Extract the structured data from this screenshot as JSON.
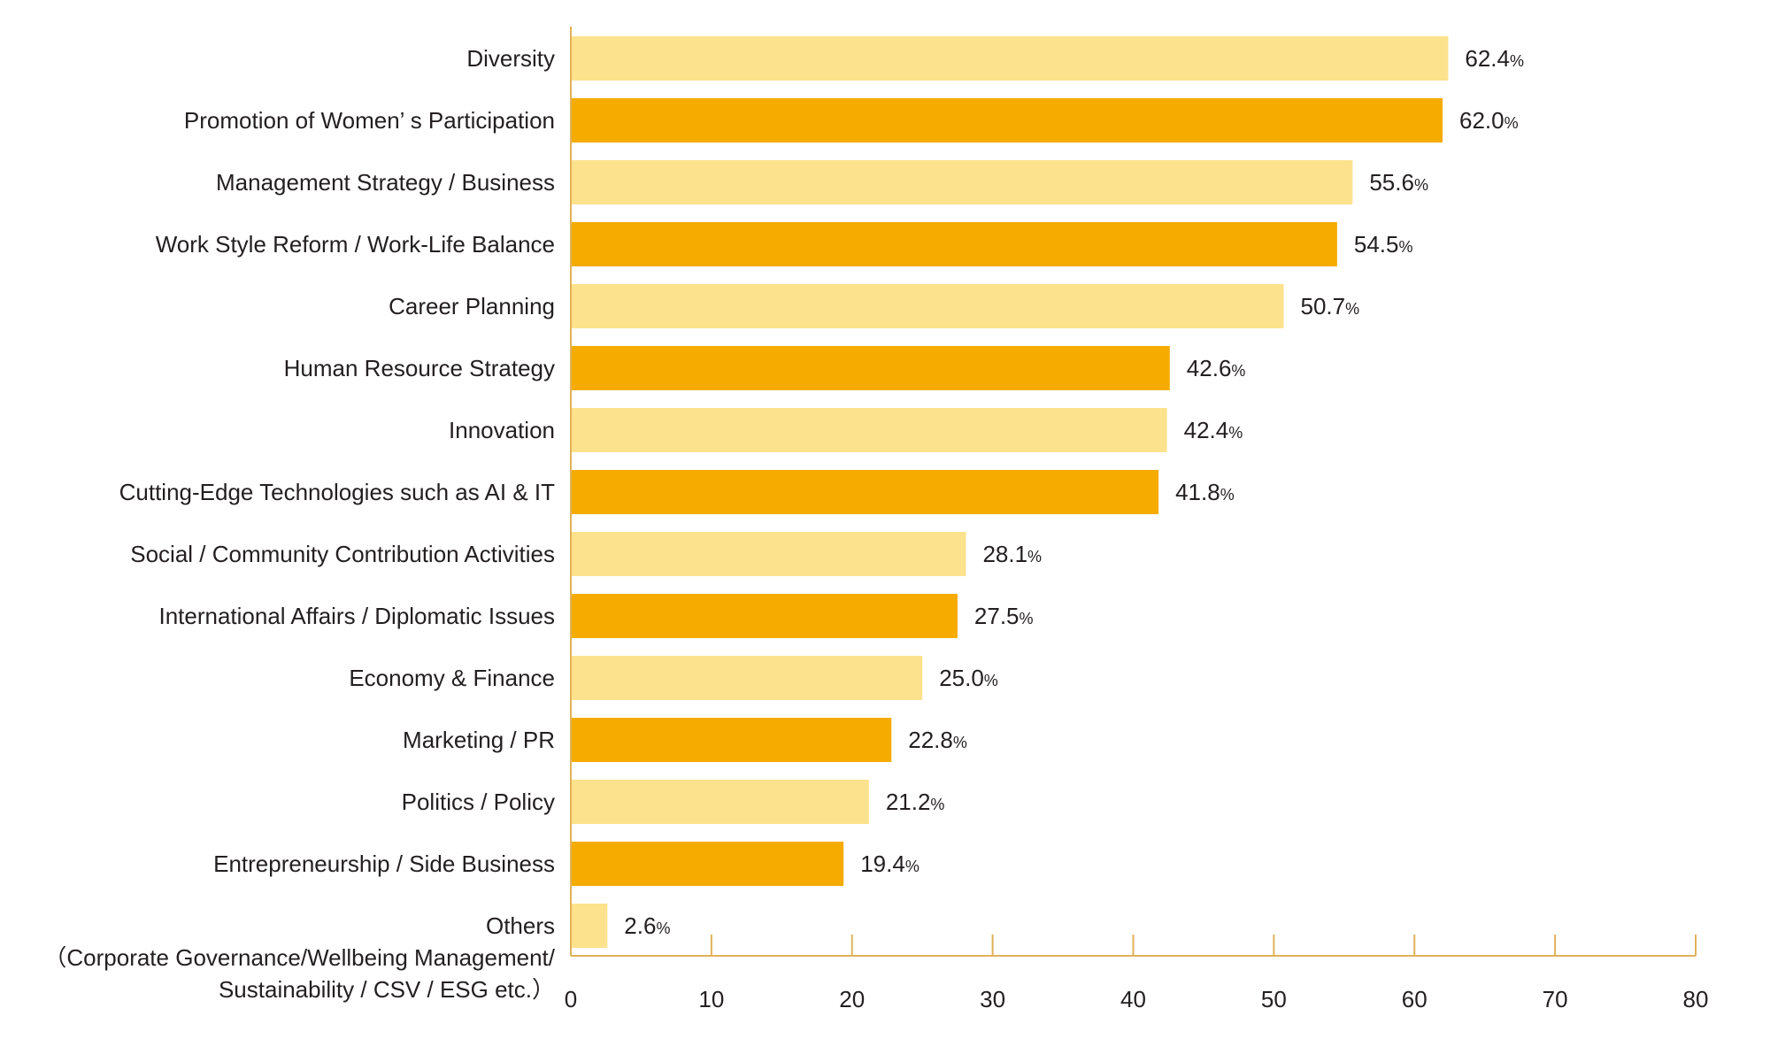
{
  "chart_data": {
    "type": "bar",
    "orientation": "horizontal",
    "title": "",
    "xlabel": "",
    "ylabel": "",
    "xlim": [
      0,
      80
    ],
    "ticks": [
      "0",
      "10",
      "20",
      "30",
      "40",
      "50",
      "60",
      "70",
      "80"
    ],
    "unit": "%",
    "grid": false,
    "colors": {
      "light": "#fde28d",
      "dark": "#f5ab00",
      "axis": "#e0b25a",
      "text": "#231f20"
    },
    "categories": [
      [
        "Diversity"
      ],
      [
        "Promotion of Women’ s Participation"
      ],
      [
        "Management Strategy / Business"
      ],
      [
        "Work Style Reform / Work-Life Balance"
      ],
      [
        "Career Planning"
      ],
      [
        "Human Resource Strategy"
      ],
      [
        "Innovation"
      ],
      [
        "Cutting-Edge Technologies such as AI & IT"
      ],
      [
        "Social / Community Contribution Activities"
      ],
      [
        "International Affairs / Diplomatic Issues"
      ],
      [
        "Economy & Finance"
      ],
      [
        "Marketing / PR"
      ],
      [
        "Politics / Policy"
      ],
      [
        "Entrepreneurship / Side Business"
      ],
      [
        "Others",
        "（Corporate Governance/Wellbeing Management/",
        "Sustainability / CSV / ESG etc.）"
      ]
    ],
    "values": [
      62.4,
      62.0,
      55.6,
      54.5,
      50.7,
      42.6,
      42.4,
      41.8,
      28.1,
      27.5,
      25.0,
      22.8,
      21.2,
      19.4,
      2.6
    ],
    "value_labels": [
      "62.4",
      "62.0",
      "55.6",
      "54.5",
      "50.7",
      "42.6",
      "42.4",
      "41.8",
      "28.1",
      "27.5",
      "25.0",
      "22.8",
      "21.2",
      "19.4",
      "2.6"
    ]
  }
}
